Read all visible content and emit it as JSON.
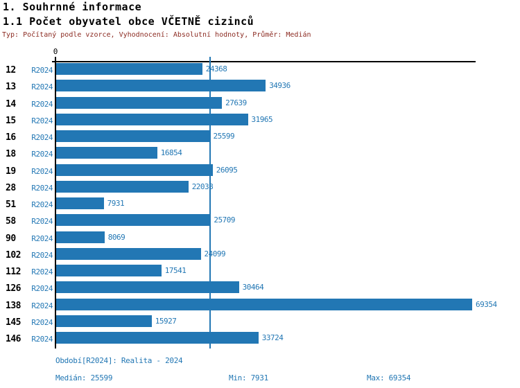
{
  "header": {
    "title": "1. Souhrnné informace",
    "subtitle": "1.1 Počet obyvatel obce VČETNĚ cizinců",
    "meta": "Typ: Počítaný podle vzorce, Vyhodnocení: Absolutní hodnoty, Průměr: Medián"
  },
  "colors": {
    "bar": "#2277b4",
    "blue_text": "#2277b4",
    "meta_text": "#8b2a21",
    "axis": "#000000"
  },
  "chart_data": {
    "type": "bar",
    "orientation": "horizontal",
    "title": "1.1 Počet obyvatel obce VČETNĚ cizinců",
    "series_label": "R2024",
    "categories": [
      "12",
      "13",
      "14",
      "15",
      "16",
      "18",
      "19",
      "28",
      "51",
      "58",
      "90",
      "102",
      "112",
      "126",
      "138",
      "145",
      "146"
    ],
    "values": [
      24368,
      34936,
      27639,
      31965,
      25599,
      16854,
      26095,
      22038,
      7931,
      25709,
      8069,
      24099,
      17541,
      30464,
      69354,
      15927,
      33724
    ],
    "x_axis": {
      "origin_label": "0",
      "min": 0,
      "max": 69354
    },
    "median_line_value": 25599,
    "grid": "single vertical median gridline",
    "legend_position": "none",
    "bar_color": "#2277b4"
  },
  "footer": {
    "period": "Období[R2024]: Realita - 2024",
    "median": "Medián: 25599",
    "min": "Min: 7931",
    "max": "Max: 69354"
  }
}
